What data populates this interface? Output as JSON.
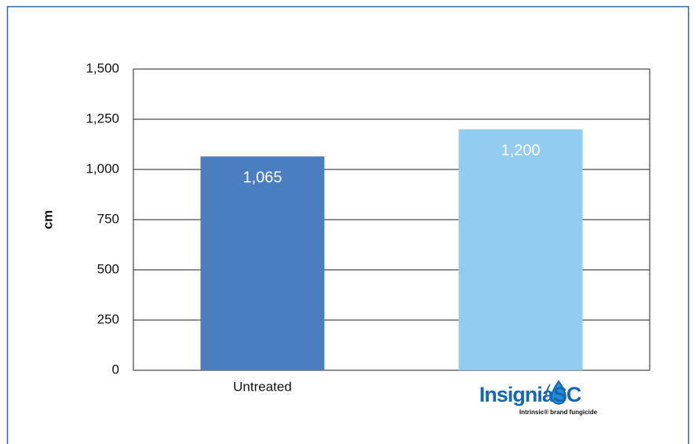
{
  "chart_data": {
    "type": "bar",
    "y_label": "cm",
    "categories": [
      "Untreated",
      "InsigniaSC"
    ],
    "logo_tagline": "Intrinsic® brand fungicide",
    "values": [
      1065,
      1200
    ],
    "value_labels": [
      "1,065",
      "1,200"
    ],
    "colors": [
      "#4a7ec0",
      "#92cdef"
    ],
    "ylim": [
      0,
      1500
    ],
    "yticks": [
      0,
      250,
      500,
      750,
      {
        "value": 1000,
        "label": "1,000"
      },
      {
        "value": 1250,
        "label": "1,250"
      },
      {
        "value": 1500,
        "label": "1,500"
      }
    ],
    "grid": true
  }
}
